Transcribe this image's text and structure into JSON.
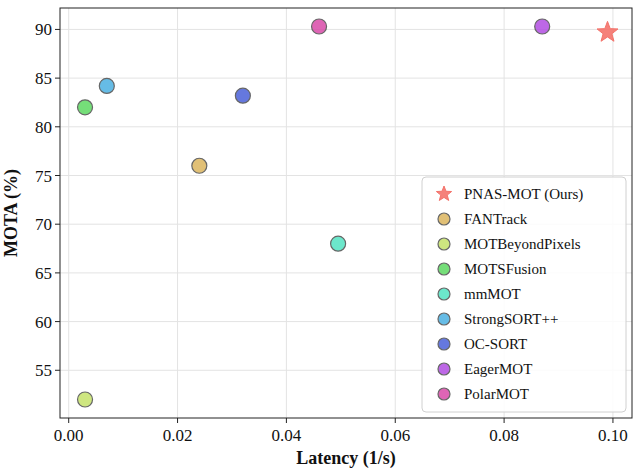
{
  "chart_data": {
    "type": "scatter",
    "x_label": "Latency (1/s)",
    "y_label": "MOTA (%)",
    "xlim": [
      -0.0016,
      0.1035
    ],
    "ylim": [
      50.1,
      92.2
    ],
    "xticks": [
      {
        "value": 0,
        "label": "0.00"
      },
      {
        "value": 0.02,
        "label": "0.02"
      },
      {
        "value": 0.04,
        "label": "0.04"
      },
      {
        "value": 0.06,
        "label": "0.06"
      },
      {
        "value": 0.08,
        "label": "0.08"
      },
      {
        "value": 0.1,
        "label": "0.10"
      }
    ],
    "yticks": [
      55,
      60,
      65,
      70,
      75,
      80,
      85,
      90
    ],
    "grid": true,
    "legend": "lower right",
    "series": [
      {
        "name": "PNAS-MOT (Ours)",
        "color": "#f4736b",
        "marker": "star",
        "x": [
          0.099
        ],
        "values": [
          89.7
        ]
      },
      {
        "name": "FANTrack",
        "color": "#dcb55e",
        "marker": "circle",
        "x": [
          0.024
        ],
        "values": [
          76.0
        ]
      },
      {
        "name": "MOTBeyondPixels",
        "color": "#c6e26a",
        "marker": "circle",
        "x": [
          0.003
        ],
        "values": [
          52.0
        ]
      },
      {
        "name": "MOTSFusion",
        "color": "#5dd862",
        "marker": "circle",
        "x": [
          0.003
        ],
        "values": [
          82.0
        ]
      },
      {
        "name": "mmMOT",
        "color": "#52e3c2",
        "marker": "circle",
        "x": [
          0.0495
        ],
        "values": [
          68.0
        ]
      },
      {
        "name": "StrongSORT++",
        "color": "#4bb0e2",
        "marker": "circle",
        "x": [
          0.007
        ],
        "values": [
          84.2
        ]
      },
      {
        "name": "OC-SORT",
        "color": "#4a60d8",
        "marker": "circle",
        "x": [
          0.032
        ],
        "values": [
          83.2
        ]
      },
      {
        "name": "EagerMOT",
        "color": "#b14de2",
        "marker": "circle",
        "x": [
          0.087
        ],
        "values": [
          90.3
        ]
      },
      {
        "name": "PolarMOT",
        "color": "#d84aa8",
        "marker": "circle",
        "x": [
          0.046
        ],
        "values": [
          90.3
        ]
      }
    ]
  }
}
